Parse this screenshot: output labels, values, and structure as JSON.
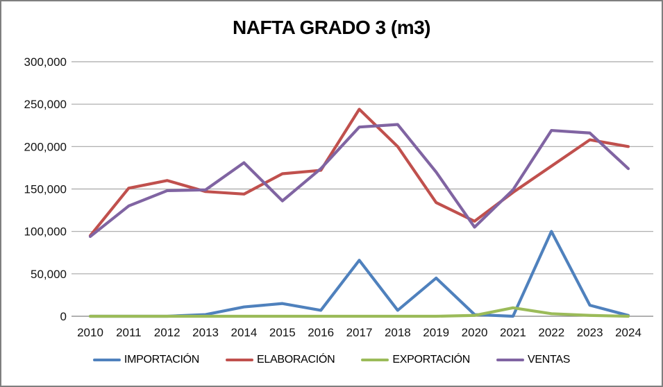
{
  "title": "NAFTA GRADO 3 (m3)",
  "chart_data": {
    "type": "line",
    "categories": [
      "2010",
      "2011",
      "2012",
      "2013",
      "2014",
      "2015",
      "2016",
      "2017",
      "2018",
      "2019",
      "2020",
      "2021",
      "2022",
      "2023",
      "2024"
    ],
    "series": [
      {
        "name": "IMPORTACIÓN",
        "color": "#4F81BD",
        "values": [
          0,
          0,
          0,
          2000,
          11000,
          15000,
          7000,
          66000,
          7000,
          45000,
          2000,
          0,
          100000,
          13000,
          1000
        ]
      },
      {
        "name": "ELABORACIÓN",
        "color": "#C0504D",
        "values": [
          95000,
          151000,
          160000,
          147000,
          144000,
          168000,
          172000,
          244000,
          200000,
          134000,
          112000,
          146000,
          177000,
          208000,
          200000
        ]
      },
      {
        "name": "EXPORTACIÓN",
        "color": "#9BBB59",
        "values": [
          0,
          0,
          0,
          0,
          0,
          0,
          0,
          0,
          0,
          0,
          1000,
          10000,
          3000,
          1000,
          0
        ]
      },
      {
        "name": "VENTAS",
        "color": "#8064A2",
        "values": [
          94000,
          130000,
          148000,
          149000,
          181000,
          136000,
          174000,
          223000,
          226000,
          170000,
          105000,
          149000,
          219000,
          216000,
          174000
        ]
      }
    ],
    "ylim": [
      0,
      300000
    ],
    "ytick_step": 50000,
    "ytick_labels": [
      "0",
      "50,000",
      "100,000",
      "150,000",
      "200,000",
      "250,000",
      "300,000"
    ],
    "xlabel": "",
    "ylabel": "",
    "grid": true,
    "legend_position": "bottom",
    "gridline_color": "#A6A6A6",
    "axis_line_color": "#808080"
  }
}
